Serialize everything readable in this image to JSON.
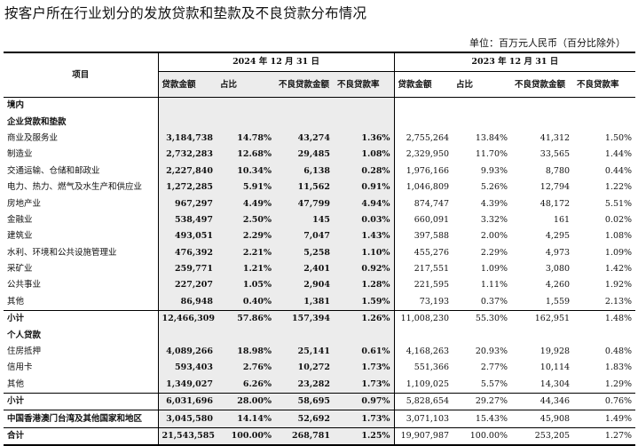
{
  "title": "按客户所在行业划分的发放贷款和垫款及不良贷款分布情况",
  "unit": "单位：百万元人民币（百分比除外）",
  "header": {
    "item": "项目",
    "year_2024": "2024 年 12 月 31 日",
    "year_2023": "2023 年 12 月 31 日",
    "cols": [
      "贷款金额",
      "占比",
      "不良贷款金额",
      "不良贷款率"
    ]
  },
  "sections": {
    "domestic": "境内",
    "corporate": "企业贷款和垫款",
    "personal": "个人贷款"
  },
  "corporate_rows": [
    {
      "label": "商业及服务业",
      "v": [
        "3,184,738",
        "14.78%",
        "43,274",
        "1.36%",
        "2,755,264",
        "13.84%",
        "41,312",
        "1.50%"
      ]
    },
    {
      "label": "制造业",
      "v": [
        "2,732,283",
        "12.68%",
        "29,485",
        "1.08%",
        "2,329,950",
        "11.70%",
        "33,565",
        "1.44%"
      ]
    },
    {
      "label": "交通运输、仓储和邮政业",
      "v": [
        "2,227,840",
        "10.34%",
        "6,138",
        "0.28%",
        "1,976,166",
        "9.93%",
        "8,780",
        "0.44%"
      ]
    },
    {
      "label": "电力、热力、燃气及水生产和供应业",
      "v": [
        "1,272,285",
        "5.91%",
        "11,562",
        "0.91%",
        "1,046,809",
        "5.26%",
        "12,794",
        "1.22%"
      ]
    },
    {
      "label": "房地产业",
      "v": [
        "967,297",
        "4.49%",
        "47,799",
        "4.94%",
        "874,747",
        "4.39%",
        "48,172",
        "5.51%"
      ]
    },
    {
      "label": "金融业",
      "v": [
        "538,497",
        "2.50%",
        "145",
        "0.03%",
        "660,091",
        "3.32%",
        "161",
        "0.02%"
      ]
    },
    {
      "label": "建筑业",
      "v": [
        "493,051",
        "2.29%",
        "7,047",
        "1.43%",
        "397,588",
        "2.00%",
        "4,295",
        "1.08%"
      ]
    },
    {
      "label": "水利、环境和公共设施管理业",
      "v": [
        "476,392",
        "2.21%",
        "5,258",
        "1.10%",
        "455,276",
        "2.29%",
        "4,973",
        "1.09%"
      ]
    },
    {
      "label": "采矿业",
      "v": [
        "259,771",
        "1.21%",
        "2,401",
        "0.92%",
        "217,551",
        "1.09%",
        "3,080",
        "1.42%"
      ]
    },
    {
      "label": "公共事业",
      "v": [
        "227,207",
        "1.05%",
        "2,904",
        "1.28%",
        "221,595",
        "1.11%",
        "4,260",
        "1.92%"
      ]
    },
    {
      "label": "其他",
      "v": [
        "86,948",
        "0.40%",
        "1,381",
        "1.59%",
        "73,193",
        "0.37%",
        "1,559",
        "2.13%"
      ]
    }
  ],
  "corporate_subtotal": {
    "label": "小计",
    "v": [
      "12,466,309",
      "57.86%",
      "157,394",
      "1.26%",
      "11,008,230",
      "55.30%",
      "162,951",
      "1.48%"
    ]
  },
  "personal_rows": [
    {
      "label": "住房抵押",
      "v": [
        "4,089,266",
        "18.98%",
        "25,141",
        "0.61%",
        "4,168,263",
        "20.93%",
        "19,928",
        "0.48%"
      ]
    },
    {
      "label": "信用卡",
      "v": [
        "593,403",
        "2.76%",
        "10,272",
        "1.73%",
        "551,366",
        "2.77%",
        "10,114",
        "1.83%"
      ]
    },
    {
      "label": "其他",
      "v": [
        "1,349,027",
        "6.26%",
        "23,282",
        "1.73%",
        "1,109,025",
        "5.57%",
        "14,304",
        "1.29%"
      ]
    }
  ],
  "personal_subtotal": {
    "label": "小计",
    "v": [
      "6,031,696",
      "28.00%",
      "58,695",
      "0.97%",
      "5,828,654",
      "29.27%",
      "44,346",
      "0.76%"
    ]
  },
  "overseas": {
    "label": "中国香港澳门台湾及其他国家和地区",
    "v": [
      "3,045,580",
      "14.14%",
      "52,692",
      "1.73%",
      "3,071,103",
      "15.43%",
      "45,908",
      "1.49%"
    ]
  },
  "total": {
    "label": "合计",
    "v": [
      "21,543,585",
      "100.00%",
      "268,781",
      "1.25%",
      "19,907,987",
      "100.00%",
      "253,205",
      "1.27%"
    ]
  },
  "colors": {
    "shade": "#ececec",
    "border": "#000000"
  }
}
